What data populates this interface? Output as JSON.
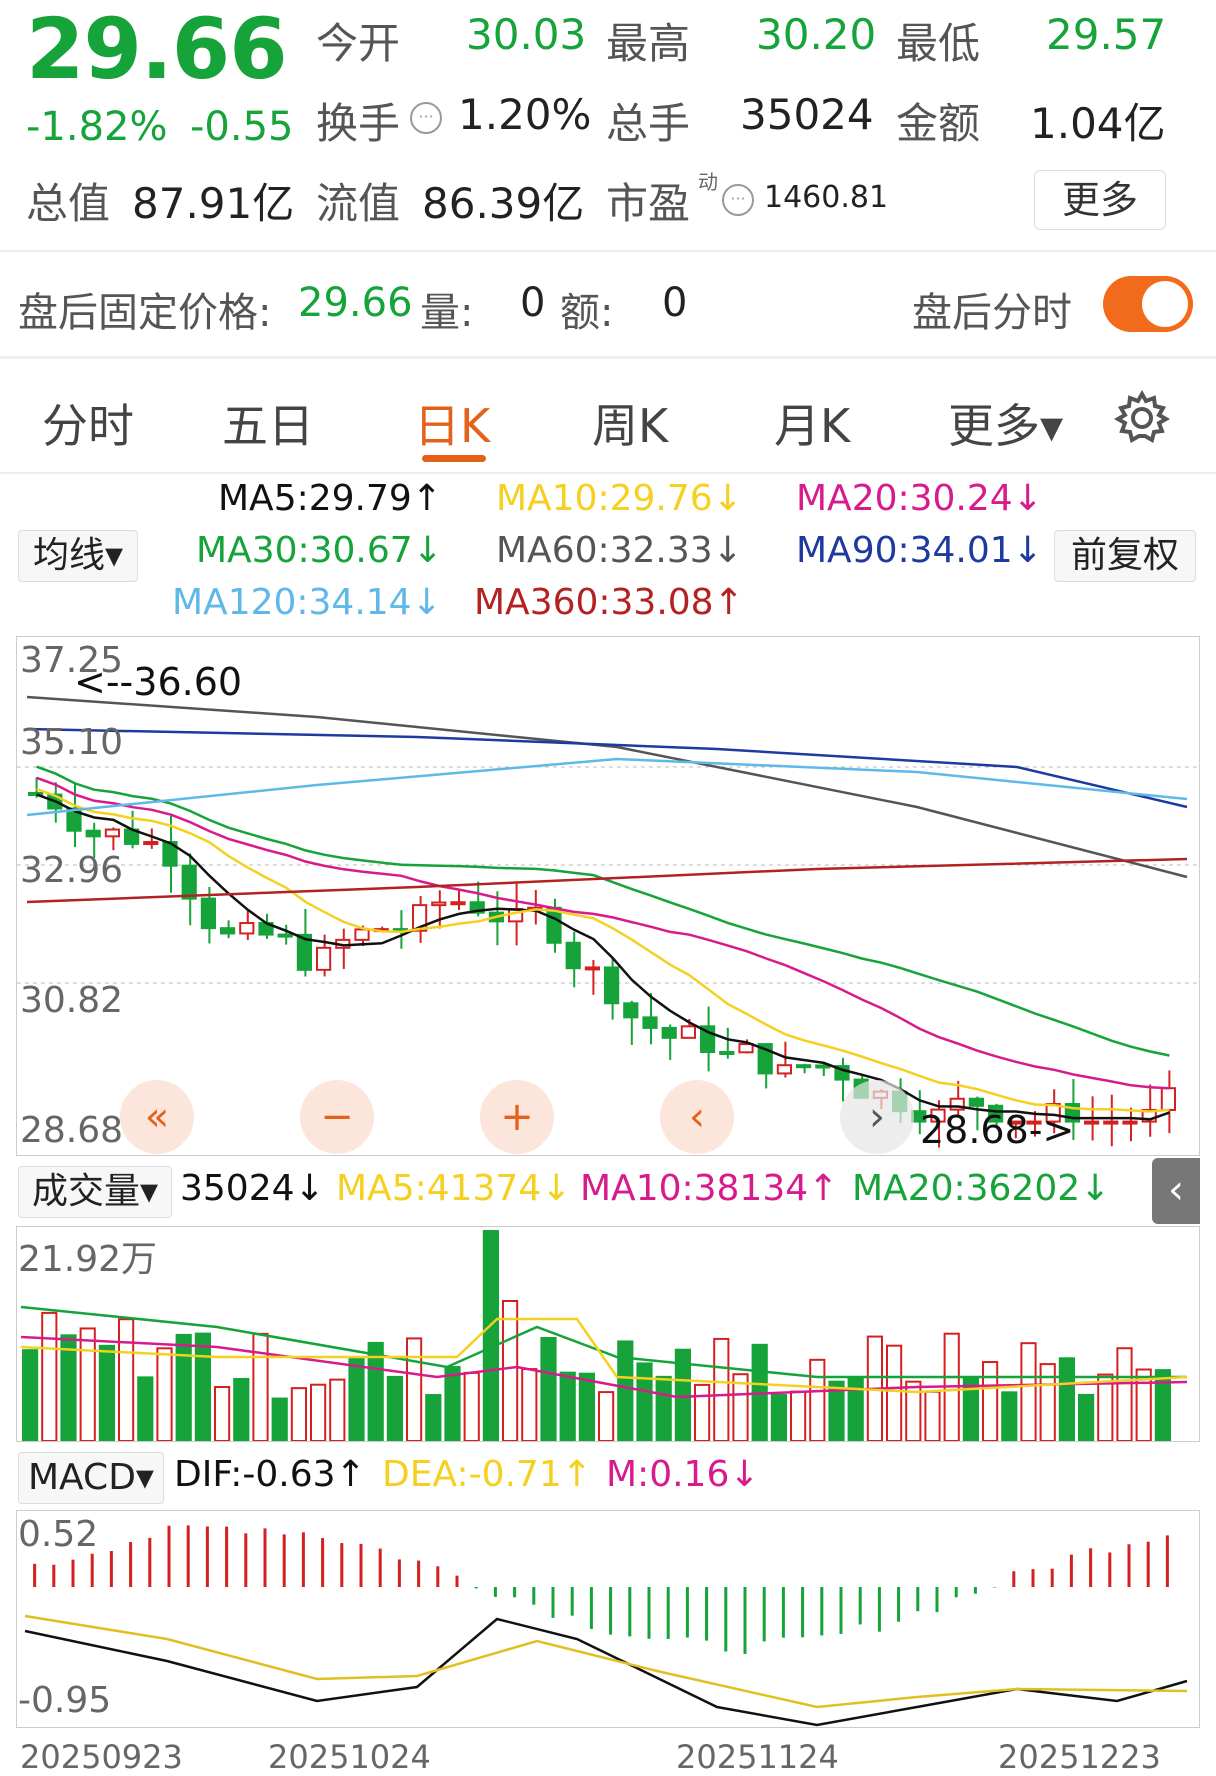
{
  "quote": {
    "price": "29.66",
    "change_pct": "-1.82%",
    "change": "-0.55",
    "open_label": "今开",
    "open": "30.03",
    "high_label": "最高",
    "high": "30.20",
    "low_label": "最低",
    "low": "29.57",
    "turnover_label": "换手",
    "turnover": "1.20%",
    "volume_label": "总手",
    "volume": "35024",
    "amount_label": "金额",
    "amount": "1.04亿",
    "total_mv_label": "总值",
    "total_mv": "87.91亿",
    "float_mv_label": "流值",
    "float_mv": "86.39亿",
    "pe_label": "市盈",
    "pe_sup": "动",
    "pe": "1460.81",
    "more_label": "更多"
  },
  "after_hours": {
    "price_label": "盘后固定价格:",
    "price": "29.66",
    "vol_label": "量:",
    "vol": "0",
    "amt_label": "额:",
    "amt": "0",
    "toggle_label": "盘后分时",
    "toggle_on": true
  },
  "tabs": [
    {
      "label": "分时"
    },
    {
      "label": "五日"
    },
    {
      "label": "日K"
    },
    {
      "label": "周K"
    },
    {
      "label": "月K"
    },
    {
      "label": "更多▾"
    }
  ],
  "ma_panel": {
    "selector": "均线▾",
    "adjust": "前复权",
    "items": [
      {
        "text": "MA5:29.79↑",
        "color": "#111111"
      },
      {
        "text": "MA10:29.76↓",
        "color": "#f5d020"
      },
      {
        "text": "MA20:30.24↓",
        "color": "#d81b8c"
      },
      {
        "text": "MA30:30.67↓",
        "color": "#15a33a"
      },
      {
        "text": "MA60:32.33↓",
        "color": "#555555"
      },
      {
        "text": "MA90:34.01↓",
        "color": "#1e3a9e"
      },
      {
        "text": "MA120:34.14↓",
        "color": "#5fb8e8"
      },
      {
        "text": "MA360:33.08↑",
        "color": "#b22222"
      }
    ]
  },
  "kline": {
    "y_labels": [
      "37.25",
      "35.10",
      "32.96",
      "30.82",
      "28.68"
    ],
    "max_marker": "<--36.60",
    "min_marker": "28.68->"
  },
  "volume_panel": {
    "selector": "成交量▾",
    "value": "35024↓",
    "ma5": "MA5:41374↓",
    "ma10": "MA10:38134↑",
    "ma20": "MA20:36202↓",
    "max_label": "21.92万"
  },
  "macd_panel": {
    "selector": "MACD▾",
    "dif": "DIF:-0.63↑",
    "dea": "DEA:-0.71↑",
    "m": "M:0.16↓",
    "top_label": "0.52",
    "bottom_label": "-0.95"
  },
  "dates": [
    "20250923",
    "20251024",
    "20251124",
    "20251223"
  ],
  "controls": {
    "rewind": "«",
    "zoom_out": "−",
    "zoom_in": "+",
    "prev": "‹",
    "next": "›"
  },
  "colors": {
    "up": "#d42020",
    "down": "#15a33a",
    "accent": "#e4611a"
  }
}
